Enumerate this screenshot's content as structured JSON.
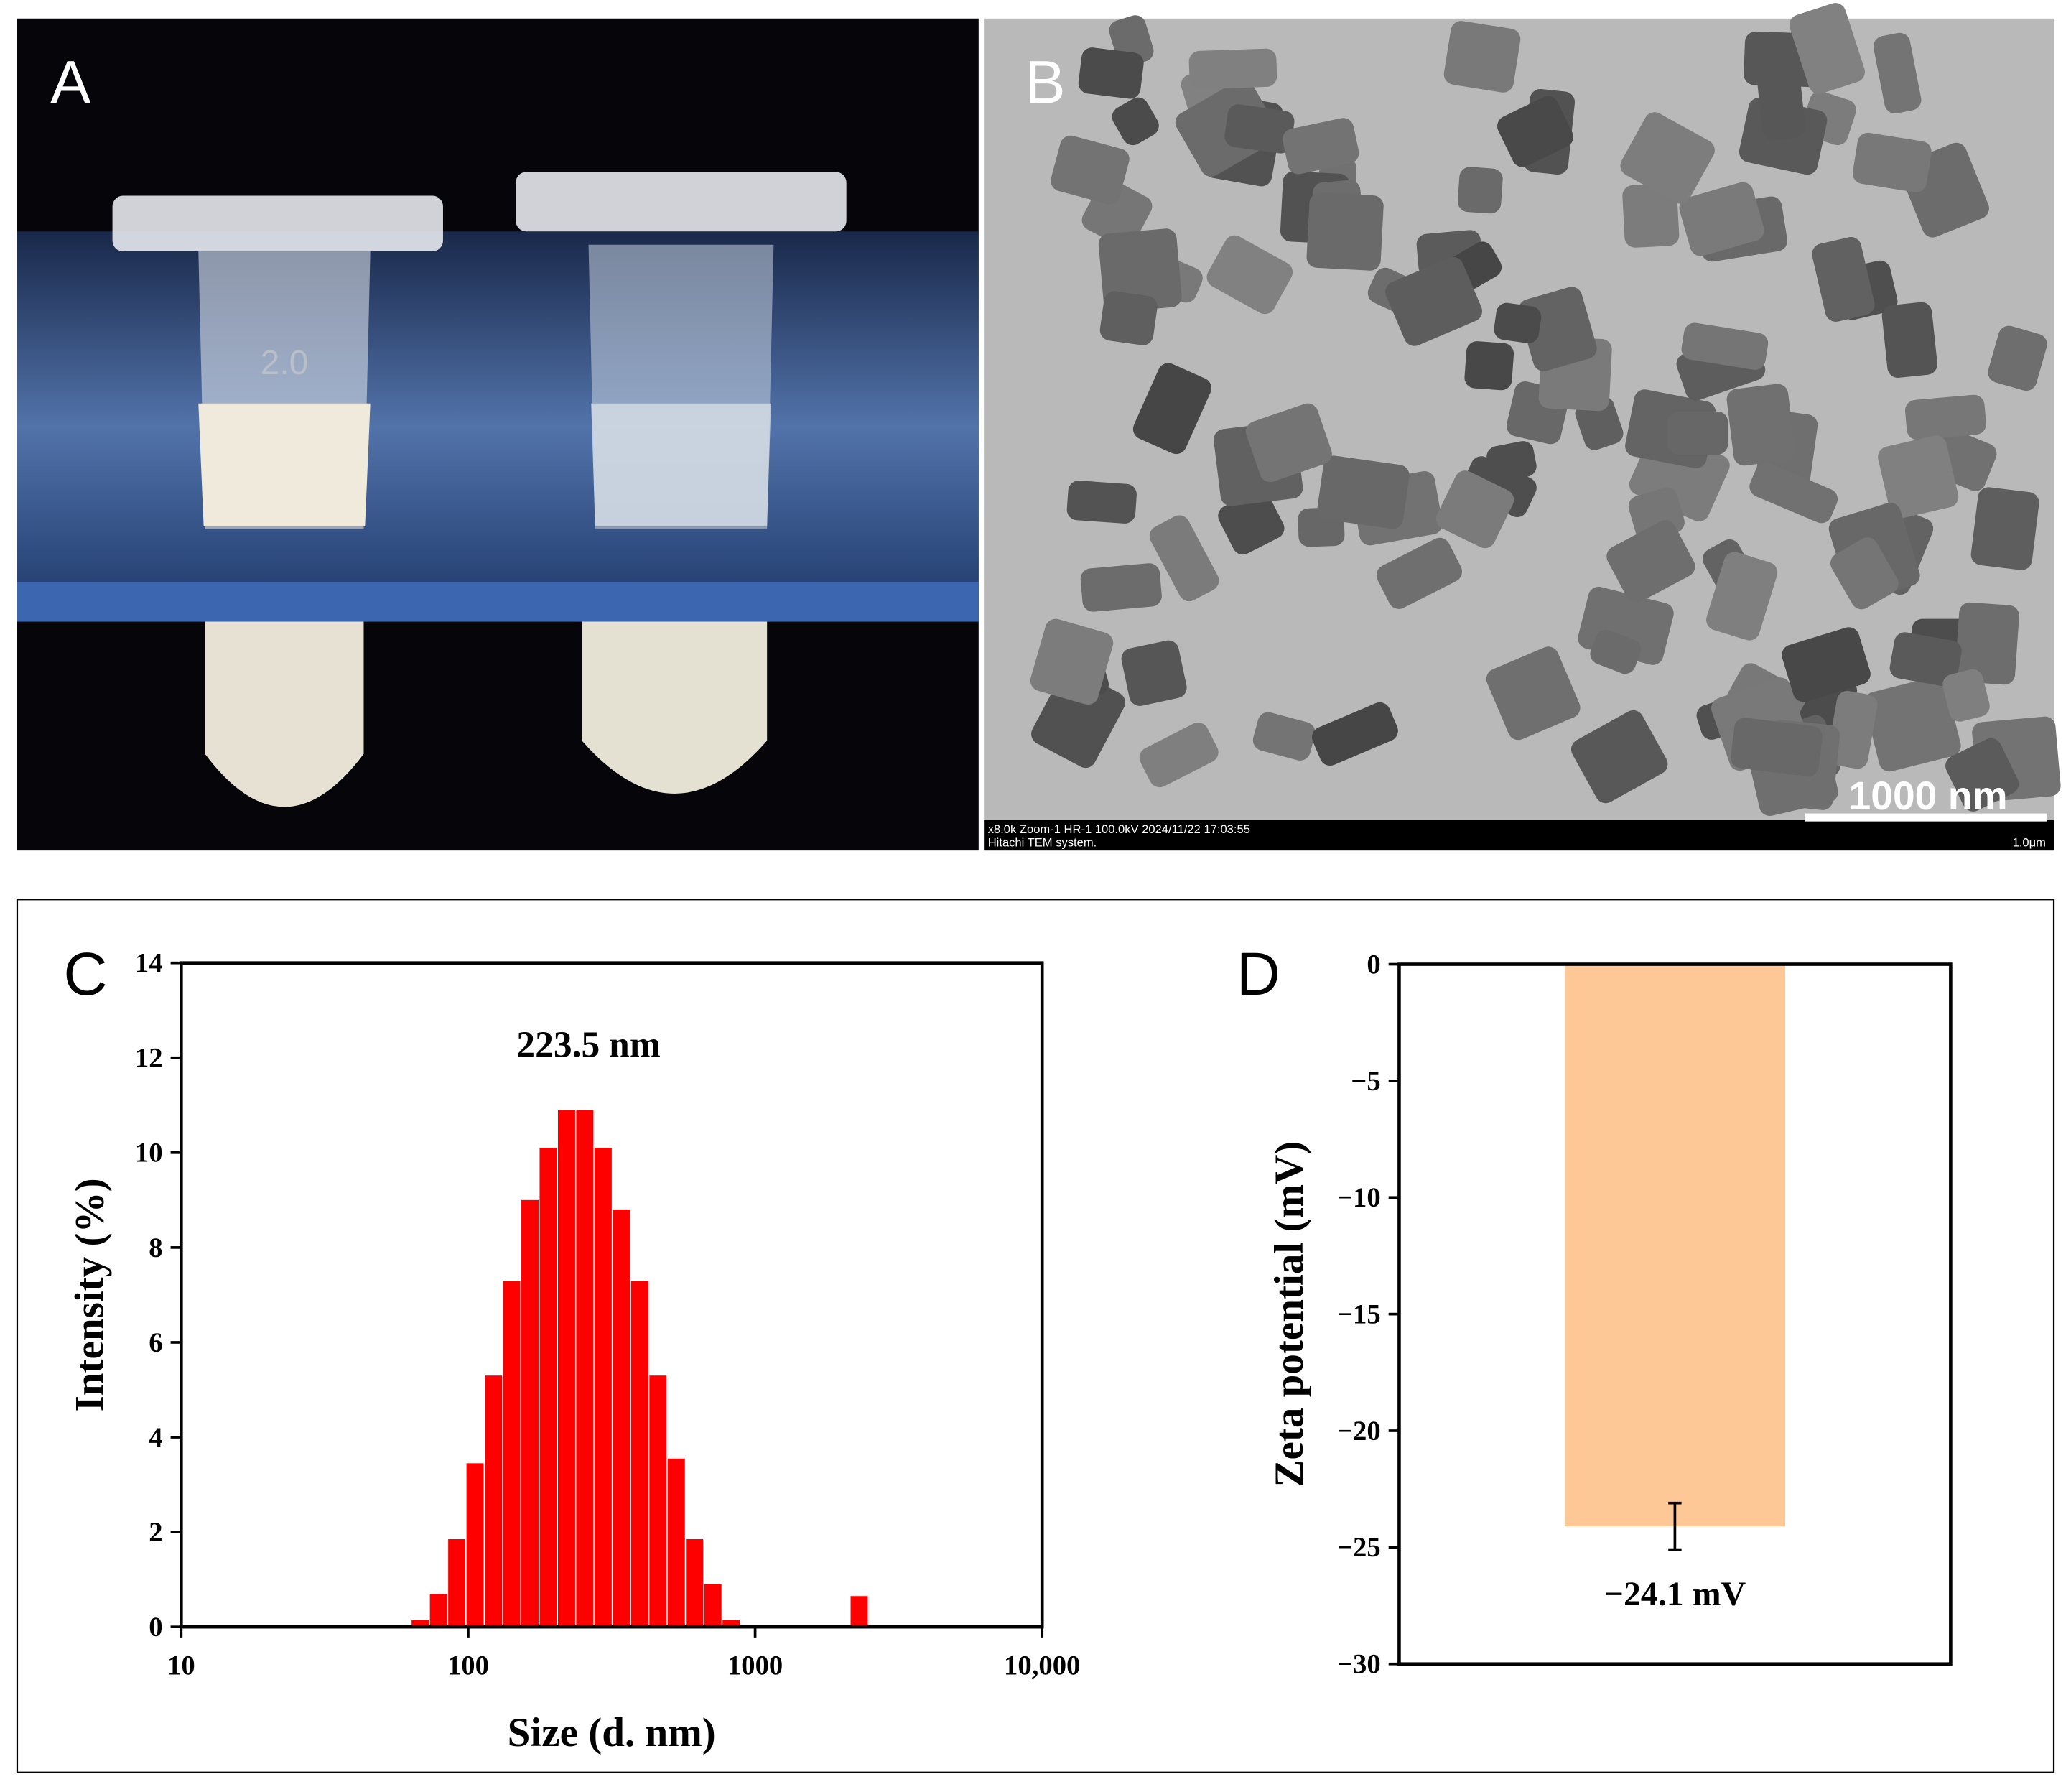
{
  "panels": {
    "A": {
      "label": "A",
      "tube_text": "2.0"
    },
    "B": {
      "label": "B",
      "scale_bar": "1000 nm",
      "caption_line1": "x8.0k Zoom-1 HR-1 100.0kV 2024/11/22 17:03:55",
      "caption_line2": "Hitachi TEM system.",
      "caption_right": "1.0μm"
    }
  },
  "chart_data": [
    {
      "type": "bar",
      "panel_label": "C",
      "log_x": true,
      "x": [
        68.06,
        78.82,
        91.28,
        105.7,
        122.4,
        141.8,
        164.2,
        190.1,
        220.2,
        255.0,
        295.3,
        342.0,
        396.1,
        458.7,
        531.2,
        615.1,
        712.4,
        825.0,
        2305
      ],
      "values": [
        0.15,
        0.7,
        1.85,
        3.45,
        5.3,
        7.3,
        9.0,
        10.1,
        10.9,
        10.9,
        10.1,
        8.8,
        7.3,
        5.3,
        3.55,
        1.85,
        0.9,
        0.15,
        0.65
      ],
      "color": "#ff0000",
      "xlim": [
        10,
        10000
      ],
      "xticks": [
        10,
        100,
        1000,
        {
          "value": 10000,
          "label": "10,000"
        }
      ],
      "ylim": [
        0,
        14
      ],
      "yticks": [
        0,
        2,
        4,
        6,
        8,
        10,
        12,
        14
      ],
      "xlabel": "Size (d. nm)",
      "ylabel": "Intensity (%)",
      "annotation": "223.5 nm"
    },
    {
      "type": "bar",
      "panel_label": "D",
      "categories": [
        null
      ],
      "values": [
        -24.1
      ],
      "errors": [
        1.0
      ],
      "value_labels": [
        "−24.1 mV"
      ],
      "color": "#fdc896",
      "ylim": [
        -30,
        0
      ],
      "yticks": [
        0,
        {
          "value": -5,
          "label": "−5"
        },
        {
          "value": -10,
          "label": "−10"
        },
        {
          "value": -15,
          "label": "−15"
        },
        {
          "value": -20,
          "label": "−20"
        },
        {
          "value": -25,
          "label": "−25"
        },
        {
          "value": -30,
          "label": "−30"
        }
      ],
      "ylabel": "Zeta potential (mV)"
    }
  ]
}
